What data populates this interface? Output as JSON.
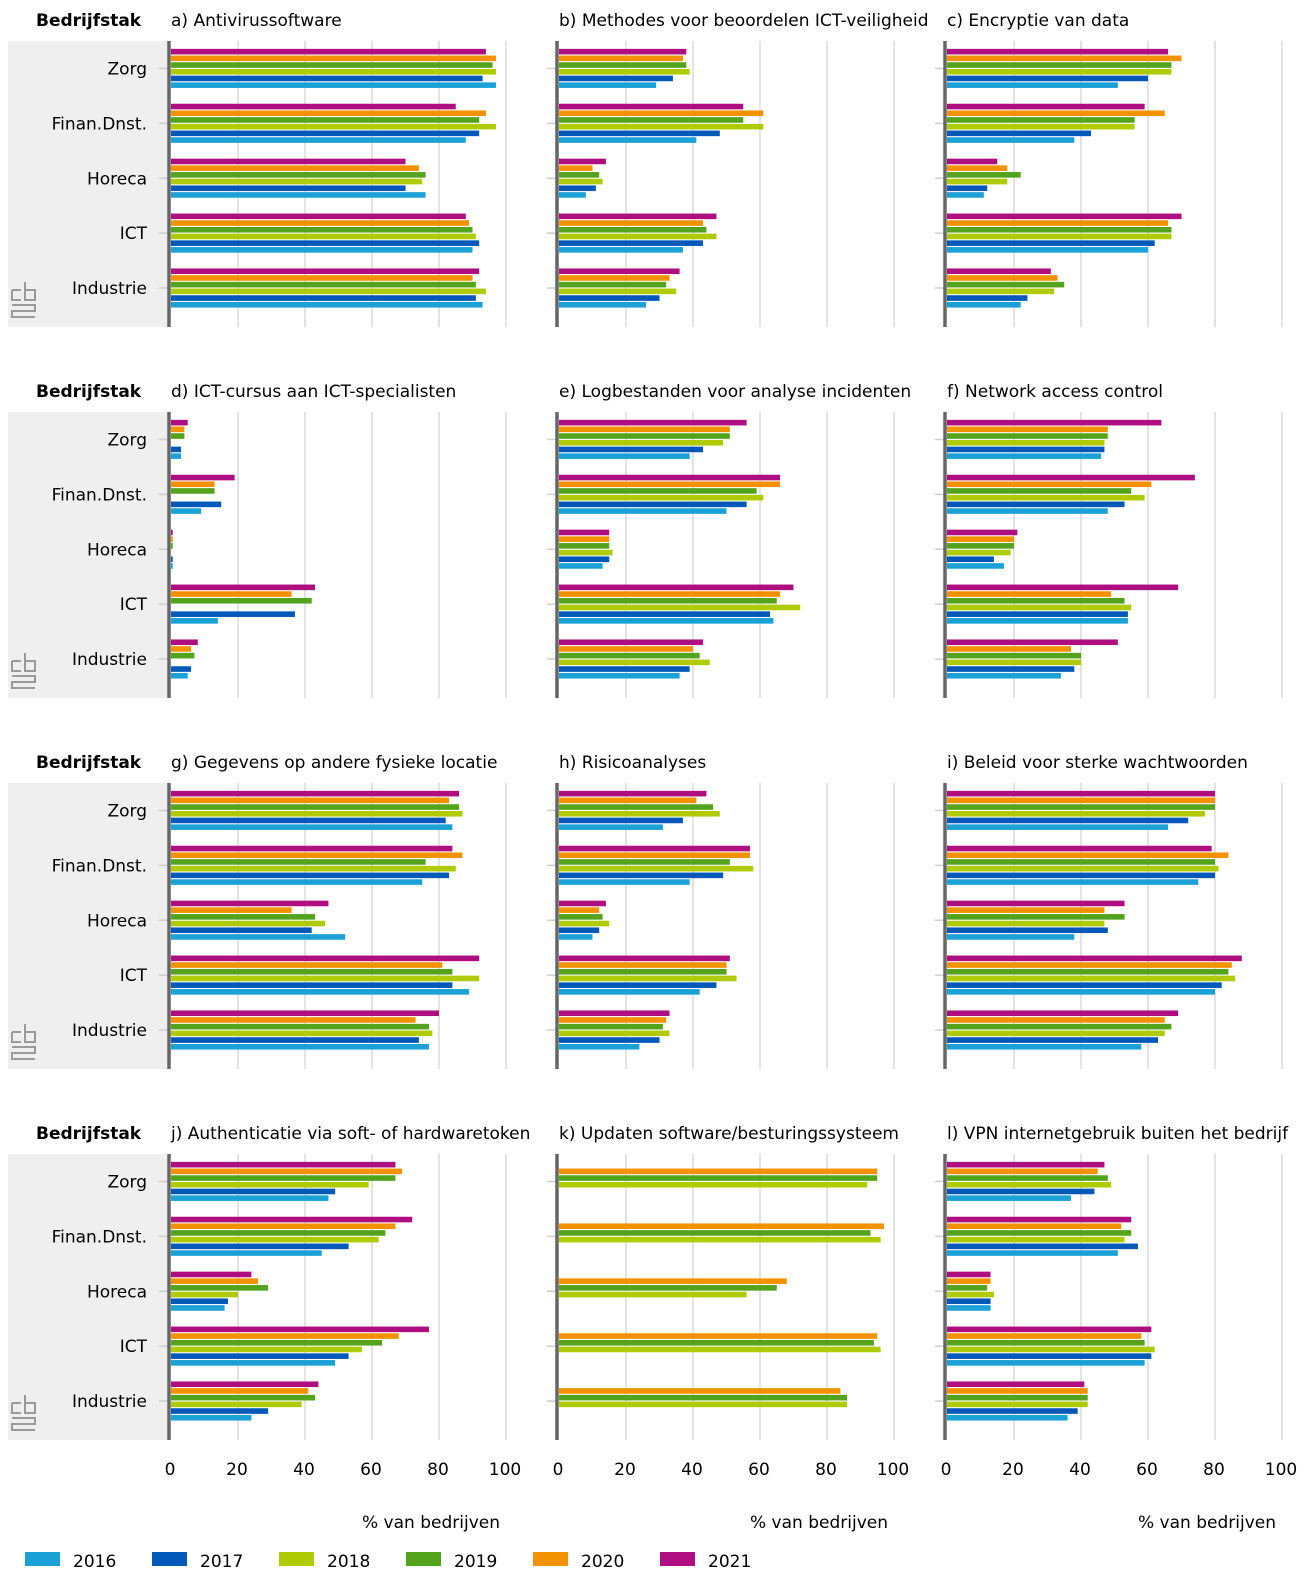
{
  "chart_data": {
    "type": "bar",
    "orientation": "horizontal",
    "row_header": "Bedrijfstak",
    "categories": [
      "Zorg",
      "Finan.Dnst.",
      "Horeca",
      "ICT",
      "Industrie"
    ],
    "years": [
      "2016",
      "2017",
      "2018",
      "2019",
      "2020",
      "2021"
    ],
    "colors": {
      "2016": "#1ba1d6",
      "2017": "#0058b8",
      "2018": "#afcb05",
      "2019": "#53a31d",
      "2020": "#f39200",
      "2021": "#af0e80"
    },
    "xlim": [
      0,
      100
    ],
    "xticks": [
      "0",
      "20",
      "40",
      "60",
      "80",
      "100"
    ],
    "xlabel": "% van bedrijven",
    "grid": "vertical",
    "legend_position": "bottom",
    "panels": [
      {
        "title": "a) Antivirussoftware",
        "values": {
          "Zorg": [
            97,
            93,
            97,
            96,
            97,
            94
          ],
          "Finan.Dnst.": [
            88,
            92,
            97,
            92,
            94,
            85
          ],
          "Horeca": [
            76,
            70,
            75,
            76,
            74,
            70
          ],
          "ICT": [
            90,
            92,
            91,
            90,
            89,
            88
          ],
          "Industrie": [
            93,
            91,
            94,
            91,
            90,
            92
          ]
        }
      },
      {
        "title": "b) Methodes voor beoordelen ICT-veiligheid",
        "values": {
          "Zorg": [
            29,
            34,
            39,
            38,
            37,
            38
          ],
          "Finan.Dnst.": [
            41,
            48,
            61,
            55,
            61,
            55
          ],
          "Horeca": [
            8,
            11,
            13,
            12,
            10,
            14
          ],
          "ICT": [
            37,
            43,
            47,
            44,
            43,
            47
          ],
          "Industrie": [
            26,
            30,
            35,
            32,
            33,
            36
          ]
        }
      },
      {
        "title": "c) Encryptie van data",
        "values": {
          "Zorg": [
            51,
            60,
            67,
            67,
            70,
            66
          ],
          "Finan.Dnst.": [
            38,
            43,
            56,
            56,
            65,
            59
          ],
          "Horeca": [
            11,
            12,
            18,
            22,
            18,
            15
          ],
          "ICT": [
            60,
            62,
            67,
            67,
            66,
            70
          ],
          "Industrie": [
            22,
            24,
            32,
            35,
            33,
            31
          ]
        }
      },
      {
        "title": "d) ICT-cursus aan ICT-specialisten",
        "values": {
          "Zorg": [
            3,
            3,
            null,
            4,
            4,
            5
          ],
          "Finan.Dnst.": [
            9,
            15,
            null,
            13,
            13,
            19
          ],
          "Horeca": [
            0.5,
            0.5,
            null,
            0.5,
            0.5,
            0.5
          ],
          "ICT": [
            14,
            37,
            null,
            42,
            36,
            43
          ],
          "Industrie": [
            5,
            6,
            null,
            7,
            6,
            8
          ]
        }
      },
      {
        "title": "e) Logbestanden voor analyse incidenten",
        "values": {
          "Zorg": [
            39,
            43,
            49,
            51,
            51,
            56
          ],
          "Finan.Dnst.": [
            50,
            56,
            61,
            59,
            66,
            66
          ],
          "Horeca": [
            13,
            15,
            16,
            15,
            15,
            15
          ],
          "ICT": [
            64,
            63,
            72,
            65,
            66,
            70
          ],
          "Industrie": [
            36,
            39,
            45,
            42,
            40,
            43
          ]
        }
      },
      {
        "title": "f) Network access control",
        "values": {
          "Zorg": [
            46,
            47,
            47,
            48,
            48,
            64
          ],
          "Finan.Dnst.": [
            48,
            53,
            59,
            55,
            61,
            74
          ],
          "Horeca": [
            17,
            14,
            19,
            20,
            20,
            21
          ],
          "ICT": [
            54,
            54,
            55,
            53,
            49,
            69
          ],
          "Industrie": [
            34,
            38,
            40,
            40,
            37,
            51
          ]
        }
      },
      {
        "title": "g) Gegevens op andere fysieke locatie",
        "values": {
          "Zorg": [
            84,
            82,
            87,
            86,
            83,
            86
          ],
          "Finan.Dnst.": [
            75,
            83,
            85,
            76,
            87,
            84
          ],
          "Horeca": [
            52,
            42,
            46,
            43,
            36,
            47
          ],
          "ICT": [
            89,
            84,
            92,
            84,
            81,
            92
          ],
          "Industrie": [
            77,
            74,
            78,
            77,
            73,
            80
          ]
        }
      },
      {
        "title": "h) Risicoanalyses",
        "values": {
          "Zorg": [
            31,
            37,
            48,
            46,
            41,
            44
          ],
          "Finan.Dnst.": [
            39,
            49,
            58,
            51,
            57,
            57
          ],
          "Horeca": [
            10,
            12,
            15,
            13,
            12,
            14
          ],
          "ICT": [
            42,
            47,
            53,
            50,
            50,
            51
          ],
          "Industrie": [
            24,
            30,
            33,
            31,
            32,
            33
          ]
        }
      },
      {
        "title": "i) Beleid voor sterke wachtwoorden",
        "values": {
          "Zorg": [
            66,
            72,
            77,
            80,
            80,
            80
          ],
          "Finan.Dnst.": [
            75,
            80,
            81,
            80,
            84,
            79
          ],
          "Horeca": [
            38,
            48,
            47,
            53,
            47,
            53
          ],
          "ICT": [
            80,
            82,
            86,
            84,
            85,
            88
          ],
          "Industrie": [
            58,
            63,
            65,
            67,
            65,
            69
          ]
        }
      },
      {
        "title": "j) Authenticatie via soft- of hardwaretoken",
        "values": {
          "Zorg": [
            47,
            49,
            59,
            67,
            69,
            67
          ],
          "Finan.Dnst.": [
            45,
            53,
            62,
            64,
            67,
            72
          ],
          "Horeca": [
            16,
            17,
            20,
            29,
            26,
            24
          ],
          "ICT": [
            49,
            53,
            57,
            63,
            68,
            77
          ],
          "Industrie": [
            24,
            29,
            39,
            43,
            41,
            44
          ]
        }
      },
      {
        "title": "k) Updaten software/besturingssysteem",
        "values": {
          "Zorg": [
            null,
            null,
            92,
            95,
            95,
            null
          ],
          "Finan.Dnst.": [
            null,
            null,
            96,
            93,
            97,
            null
          ],
          "Horeca": [
            null,
            null,
            56,
            65,
            68,
            null
          ],
          "ICT": [
            null,
            null,
            96,
            94,
            95,
            null
          ],
          "Industrie": [
            null,
            null,
            86,
            86,
            84,
            null
          ]
        }
      },
      {
        "title": "l) VPN internetgebruik buiten het bedrijf",
        "values": {
          "Zorg": [
            37,
            44,
            49,
            48,
            45,
            47
          ],
          "Finan.Dnst.": [
            51,
            57,
            53,
            55,
            52,
            55
          ],
          "Horeca": [
            13,
            13,
            14,
            12,
            13,
            13
          ],
          "ICT": [
            59,
            61,
            62,
            59,
            58,
            61
          ],
          "Industrie": [
            36,
            39,
            42,
            42,
            42,
            41
          ]
        }
      }
    ]
  }
}
